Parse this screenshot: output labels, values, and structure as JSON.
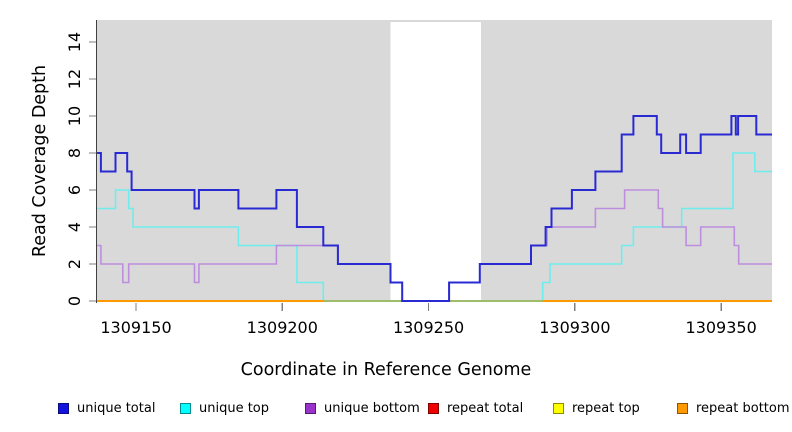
{
  "chart_data": {
    "type": "line",
    "subtype": "step-coverage-plot",
    "title": "",
    "xlabel": "Coordinate in Reference Genome",
    "ylabel": "Read Coverage Depth",
    "x_ticks": [
      1309150,
      1309200,
      1309250,
      1309300,
      1309350
    ],
    "y_ticks": [
      0,
      2,
      4,
      6,
      8,
      10,
      12,
      14
    ],
    "x_range": [
      1309136.7,
      1309367.4
    ],
    "ylim": [
      0,
      15
    ],
    "grid": false,
    "plot_bg_color": "#d9d9d9",
    "highlight_band": {
      "x_start": 1309237,
      "x_end": 1309268,
      "color": "#ffffff"
    },
    "zero_overlap_color": "#7dc98f",
    "legend_position": "bottom",
    "legend": [
      {
        "label": "unique total",
        "color": "#1414e0"
      },
      {
        "label": "unique top",
        "color": "#00ffff"
      },
      {
        "label": "unique bottom",
        "color": "#9933cc"
      },
      {
        "label": "repeat total",
        "color": "#ee0000"
      },
      {
        "label": "repeat top",
        "color": "#ffff00"
      },
      {
        "label": "repeat bottom",
        "color": "#ff9900"
      }
    ],
    "series": [
      {
        "name": "repeat total",
        "color": "#ee0000",
        "width": 1.6,
        "points": [
          [
            1309136.7,
            0
          ]
        ]
      },
      {
        "name": "repeat top",
        "color": "#ffff00",
        "width": 1.6,
        "points": [
          [
            1309136.7,
            0
          ]
        ]
      },
      {
        "name": "unique top",
        "color": "#6feded",
        "width": 1.6,
        "points": [
          [
            1309136.7,
            5
          ],
          [
            1309143,
            6
          ],
          [
            1309147.5,
            5
          ],
          [
            1309149,
            4
          ],
          [
            1309185,
            3
          ],
          [
            1309205,
            1
          ],
          [
            1309214,
            0
          ],
          [
            1309289,
            1
          ],
          [
            1309291.5,
            2
          ],
          [
            1309316,
            3
          ],
          [
            1309320,
            4
          ],
          [
            1309336.5,
            5
          ],
          [
            1309354,
            8
          ],
          [
            1309361.5,
            7
          ]
        ]
      },
      {
        "name": "unique bottom",
        "color": "#bd8ede",
        "width": 1.6,
        "points": [
          [
            1309136.7,
            3
          ],
          [
            1309138,
            2
          ],
          [
            1309145.5,
            1
          ],
          [
            1309147.5,
            2
          ],
          [
            1309170,
            1
          ],
          [
            1309171.5,
            2
          ],
          [
            1309198,
            3
          ],
          [
            1309219,
            2
          ],
          [
            1309237,
            1
          ],
          [
            1309241,
            0
          ],
          [
            1309257,
            1
          ],
          [
            1309267.5,
            2
          ],
          [
            1309285,
            3
          ],
          [
            1309290.5,
            4
          ],
          [
            1309307,
            5
          ],
          [
            1309317,
            6
          ],
          [
            1309328.5,
            5
          ],
          [
            1309330,
            4
          ],
          [
            1309338,
            3
          ],
          [
            1309343,
            4
          ],
          [
            1309354.5,
            3
          ],
          [
            1309356,
            2
          ]
        ]
      },
      {
        "name": "repeat bottom",
        "color": "#ff9900",
        "width": 2,
        "points": [
          [
            1309136.7,
            0
          ]
        ]
      },
      {
        "name": "zero-coverage-overlap",
        "color": "#7dc98f",
        "width": 1.6,
        "points": [
          [
            1309214,
            0
          ]
        ],
        "end": 1309289
      },
      {
        "name": "unique total",
        "color": "#2a2ad2",
        "width": 2,
        "points": [
          [
            1309136.7,
            8
          ],
          [
            1309138,
            7
          ],
          [
            1309143,
            8
          ],
          [
            1309147,
            7
          ],
          [
            1309148.5,
            6
          ],
          [
            1309170,
            5
          ],
          [
            1309171.5,
            6
          ],
          [
            1309185,
            5
          ],
          [
            1309198,
            6
          ],
          [
            1309205,
            4
          ],
          [
            1309214,
            3
          ],
          [
            1309219,
            2
          ],
          [
            1309237,
            1
          ],
          [
            1309241,
            0
          ],
          [
            1309257,
            1
          ],
          [
            1309267.5,
            2
          ],
          [
            1309285,
            3
          ],
          [
            1309290,
            4
          ],
          [
            1309292,
            5
          ],
          [
            1309299,
            6
          ],
          [
            1309307,
            7
          ],
          [
            1309316,
            9
          ],
          [
            1309320,
            10
          ],
          [
            1309328,
            9
          ],
          [
            1309329.5,
            8
          ],
          [
            1309336,
            9
          ],
          [
            1309338,
            8
          ],
          [
            1309343,
            9
          ],
          [
            1309353.5,
            10
          ],
          [
            1309355,
            9
          ],
          [
            1309355.8,
            10
          ],
          [
            1309362,
            9
          ]
        ]
      }
    ]
  }
}
